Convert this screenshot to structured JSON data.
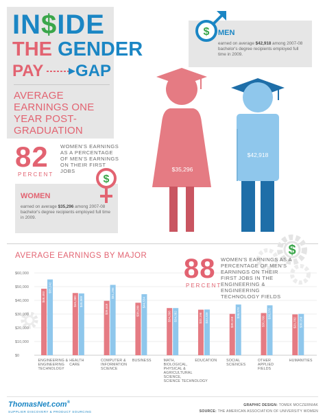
{
  "title": {
    "inside_pre": "IN",
    "inside_dollar": "$",
    "inside_post": "IDE",
    "the": "THE",
    "gender": "GENDER",
    "pay": "PAY",
    "gap": "GAP",
    "subtitle": "AVERAGE EARNINGS ONE YEAR POST-GRADUATION"
  },
  "women_stat": {
    "percent": "82",
    "percent_label": "PERCENT",
    "description": "WOMEN'S EARNINGS AS A PERCENTAGE OF MEN'S EARNINGS ON THEIR FIRST JOBS"
  },
  "women": {
    "title": "WOMEN",
    "text_pre": "earned on average ",
    "amount": "$35,296",
    "text_post": " among 2007-08 bachelor's degree recipients employed full time in 2009.",
    "figure_label": "$35,296"
  },
  "men": {
    "title": "MEN",
    "text_pre": "earned on average ",
    "amount": "$42,918",
    "text_post": " among 2007-08 bachelor's degree recipients employed full time in 2009.",
    "figure_label": "$42,918"
  },
  "stem_stat": {
    "percent": "88",
    "percent_label": "PERCENT",
    "description": "WOMEN'S EARNINGS AS A PERCENTAGE OF MEN'S EARNINGS ON THEIR FIRST JOBS IN THE ENGINEERING & ENGINEERING TECHNOLOGY FIELDS"
  },
  "chart_data": {
    "type": "bar",
    "title": "AVERAGE EARNINGS BY MAJOR",
    "ylim": [
      0,
      60000
    ],
    "yticks": [
      "$0",
      "$10,000",
      "$20,000",
      "$30,000",
      "$40,000",
      "$50,000",
      "$60,000"
    ],
    "categories": [
      [
        "ENGINEERING &",
        "ENGINEERING",
        "TECHNOLOGY"
      ],
      [
        "HEALTH",
        "CARE"
      ],
      [
        "COMPUTER &",
        "INFORMATION",
        "SCIENCE"
      ],
      [
        "BUSINESS"
      ],
      [
        "MATH,",
        "BIOLOGICAL,",
        "PHYSICAL &",
        "AGRICULTURAL",
        "SCIENCE,",
        "SCIENCE TECHNOLOGY"
      ],
      [
        "EDUCATION"
      ],
      [
        "SOCIAL",
        "SCIENCES"
      ],
      [
        "OTHER",
        "APPLIED",
        "FIELDS"
      ],
      [
        "HUMANITIES"
      ]
    ],
    "series": [
      {
        "color": "#e57b83",
        "values": [
          48493,
          45360,
          39649,
          38280,
          34398,
          33196,
          30159,
          30760,
          29782
        ],
        "labels": [
          "$48,493",
          "$45,360",
          "$39,649",
          "$38,280",
          "$34,398",
          "$33,196",
          "$30,159",
          "$30,760",
          "$29,782"
        ]
      },
      {
        "color": "#8fc7ec",
        "values": [
          55242,
          45069,
          51296,
          44534,
          34382,
          33328,
          36978,
          36376,
          30156
        ],
        "labels": [
          "$55,242",
          "$45,069",
          "$51,296",
          "$44,534",
          "$34,382",
          "$33,328",
          "$36,978",
          "$36,376",
          "$30,156"
        ]
      }
    ]
  },
  "footer": {
    "logo": "ThomasNet.com",
    "logo_reg": "®",
    "tagline": "SUPPLIER DISCOVERY & PRODUCT SOURCING",
    "design_label": "GRAPHIC DESIGN: ",
    "design_value": "TOMEK MOCZERNIAK",
    "source_label": "SOURCE: ",
    "source_value": "THE AMERICAN ASSOCIATION OF UNIVERSITY WOMEN"
  },
  "colors": {
    "pink": "#e26371",
    "blue": "#1b86c4",
    "green": "#3aa64a"
  }
}
